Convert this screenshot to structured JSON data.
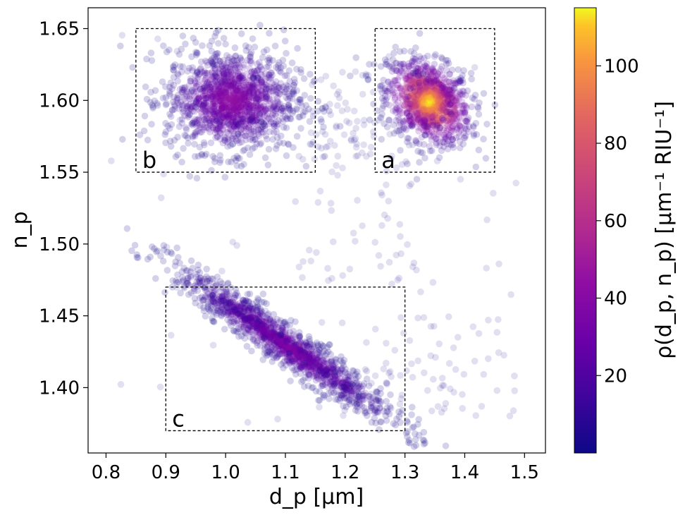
{
  "chart_data": {
    "type": "scatter",
    "xlabel": "d_p [µm]",
    "ylabel": "n_p",
    "xlim": [
      0.77,
      1.535
    ],
    "ylim": [
      1.3545,
      1.6645
    ],
    "xticks": [
      "0.8",
      "0.9",
      "1.0",
      "1.1",
      "1.2",
      "1.3",
      "1.4",
      "1.5"
    ],
    "xtick_values": [
      0.8,
      0.9,
      1.0,
      1.1,
      1.2,
      1.3,
      1.4,
      1.5
    ],
    "yticks": [
      "1.40",
      "1.45",
      "1.50",
      "1.55",
      "1.60",
      "1.65"
    ],
    "ytick_values": [
      1.4,
      1.45,
      1.5,
      1.55,
      1.6,
      1.65
    ],
    "colormap": "plasma",
    "colorbar": {
      "label": "ρ(d_p, n_p)  [µm⁻¹ RIU⁻¹]",
      "range": [
        0,
        115
      ],
      "ticks": [
        "20",
        "40",
        "60",
        "80",
        "100"
      ],
      "tick_values": [
        20,
        40,
        60,
        80,
        100
      ]
    },
    "clusters": [
      {
        "label": "a",
        "center": [
          1.34,
          1.599
        ],
        "spread": [
          0.035,
          0.014
        ],
        "peak_density": 115
      },
      {
        "label": "b",
        "center": [
          1.01,
          1.6
        ],
        "spread": [
          0.055,
          0.018
        ],
        "peak_density": 45
      },
      {
        "label": "c",
        "center": [
          1.1,
          1.43
        ],
        "spread": [
          0.09,
          0.012
        ],
        "peak_density": 40,
        "correlation": "negative"
      }
    ],
    "boxes": [
      {
        "label": "a",
        "x": [
          1.25,
          1.45
        ],
        "y": [
          1.55,
          1.65
        ]
      },
      {
        "label": "b",
        "x": [
          0.85,
          1.15
        ],
        "y": [
          1.55,
          1.65
        ]
      },
      {
        "label": "c",
        "x": [
          0.9,
          1.3
        ],
        "y": [
          1.37,
          1.47
        ]
      }
    ],
    "grid": false,
    "legend": "none"
  }
}
